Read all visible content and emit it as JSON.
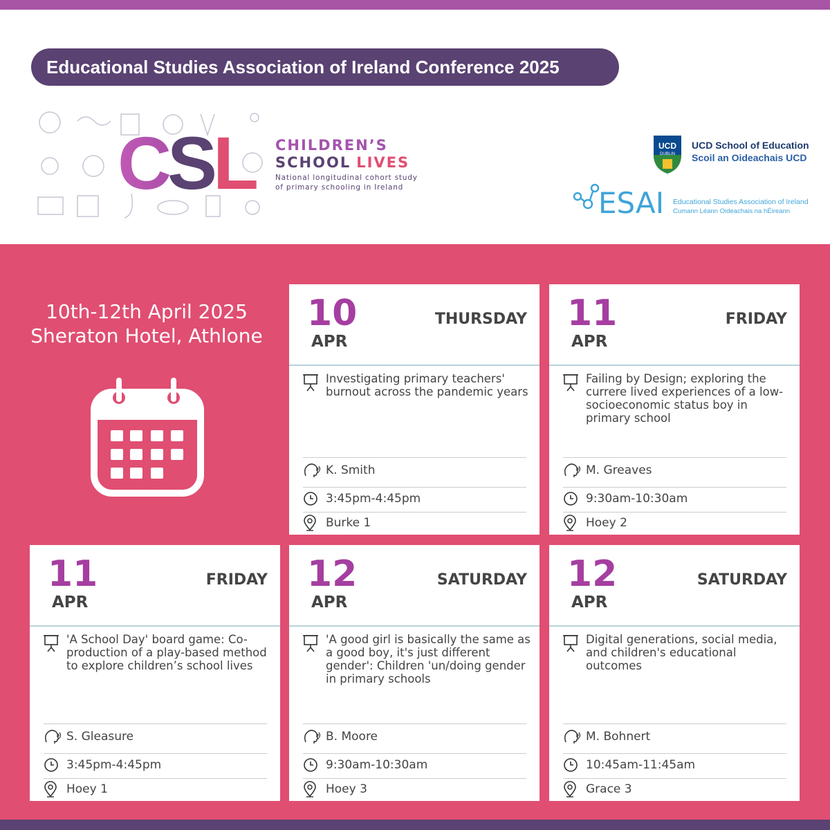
{
  "header": {
    "title": "Educational Studies Association of Ireland Conference 2025",
    "csl_logo": {
      "letters": "CSL",
      "line1": "CHILDREN’S",
      "line2a": "SCHOOL",
      "line2b": "LIVES",
      "tagline1": "National longitudinal cohort study",
      "tagline2": "of primary schooling in Ireland"
    },
    "ucd_logo": {
      "crest1": "UCD",
      "crest2": "DUBLIN",
      "line1": "UCD School of Education",
      "line2": "Scoil an Oideachais UCD"
    },
    "esai_logo": {
      "mark": "ESAI",
      "line1": "Educational Studies Association of Ireland",
      "line2": "Cumann Léann Oideachais na hÉireann"
    }
  },
  "event": {
    "dates": "10th-12th April 2025",
    "venue": "Sheraton Hotel, Athlone"
  },
  "sessions": [
    {
      "day": "10",
      "month": "APR",
      "weekday": "THURSDAY",
      "title": "Investigating primary teachers' burnout across the pandemic years",
      "speaker": "K. Smith",
      "time": "3:45pm-4:45pm",
      "room": "Burke 1"
    },
    {
      "day": "11",
      "month": "APR",
      "weekday": "FRIDAY",
      "title": "Failing by Design; exploring the currere lived experiences of a low-socioeconomic status boy in primary school",
      "speaker": "M. Greaves",
      "time": "9:30am-10:30am",
      "room": "Hoey 2"
    },
    {
      "day": "11",
      "month": "APR",
      "weekday": "FRIDAY",
      "title": "'A School Day' board game: Co-production of a play-based method to explore children’s school lives",
      "speaker": "S. Gleasure",
      "time": "3:45pm-4:45pm",
      "room": "Hoey 1"
    },
    {
      "day": "12",
      "month": "APR",
      "weekday": "SATURDAY",
      "title": "'A good girl is basically the same as a good boy, it's just different gender': Children 'un/doing gender in primary schools",
      "speaker": "B. Moore",
      "time": "9:30am-10:30am",
      "room": "Hoey 3"
    },
    {
      "day": "12",
      "month": "APR",
      "weekday": "SATURDAY",
      "title": "Digital generations, social media, and children's educational outcomes",
      "speaker": "M. Bohnert",
      "time": "10:45am-11:45am",
      "room": "Grace 3"
    }
  ]
}
